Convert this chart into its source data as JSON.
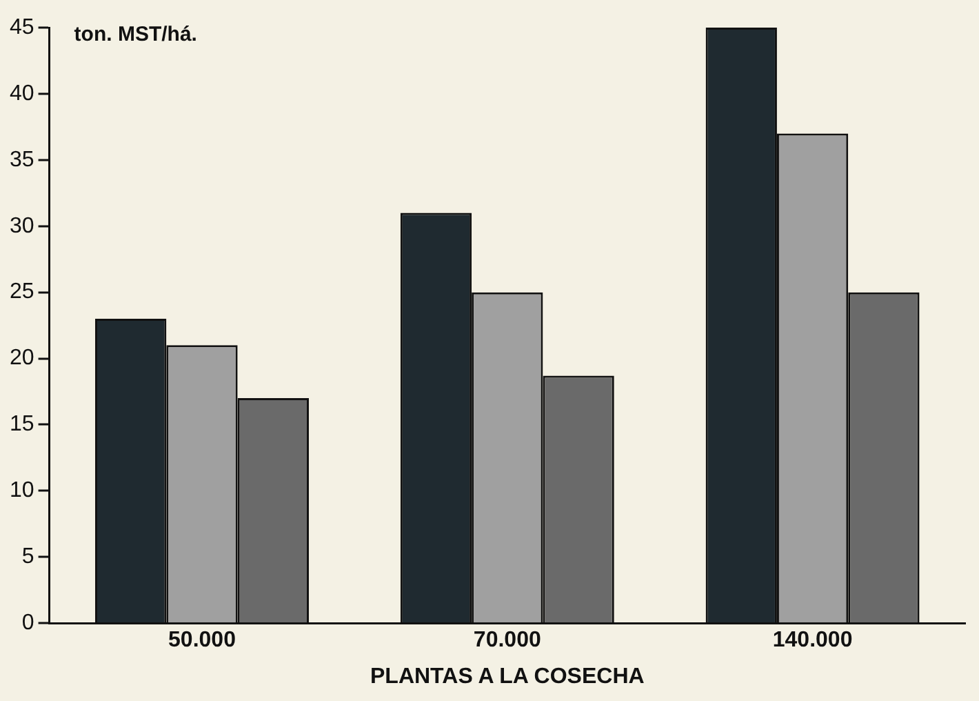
{
  "chart_data": {
    "type": "bar",
    "ylabel": "ton. MST/há.",
    "xlabel": "PLANTAS A LA COSECHA",
    "categories": [
      "50.000",
      "70.000",
      "140.000"
    ],
    "series": [
      {
        "color": "#1f2a30",
        "values": [
          23,
          31,
          45
        ]
      },
      {
        "color": "#a0a0a0",
        "values": [
          21,
          25,
          37
        ]
      },
      {
        "color": "#6a6a6a",
        "values": [
          17,
          18.7,
          25
        ]
      }
    ],
    "ylim": [
      0,
      45
    ],
    "yticks": [
      0,
      5,
      10,
      15,
      20,
      25,
      30,
      35,
      40,
      45
    ],
    "grid": false,
    "legend": false
  }
}
